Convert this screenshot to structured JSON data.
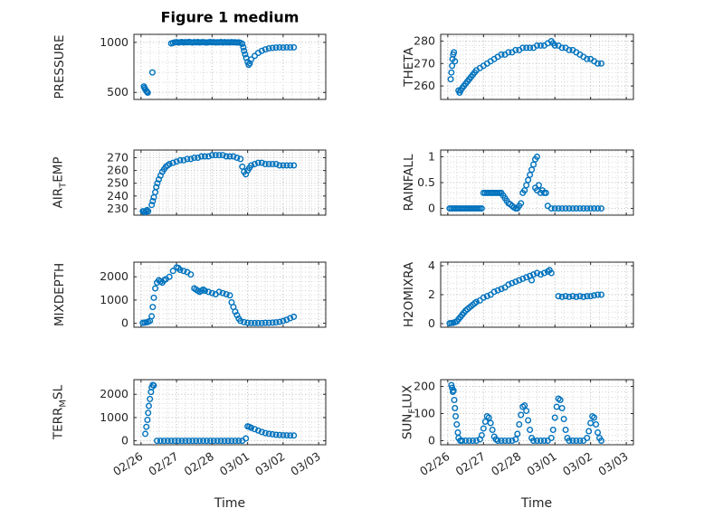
{
  "title": "Figure 1 medium",
  "xlabel": "Time",
  "marker_color": "#0072BD",
  "xlim": [
    -0.2,
    5.2
  ],
  "xticks": [
    0,
    1,
    2,
    3,
    4,
    5
  ],
  "xticklabels": [
    "02/26",
    "02/27",
    "02/28",
    "03/01",
    "03/02",
    "03/03"
  ],
  "chart_data": [
    {
      "type": "scatter",
      "name": "pressure",
      "ylabel_parts": [
        {
          "t": "PRESSURE",
          "sub": false
        }
      ],
      "ylim": [
        430,
        1080
      ],
      "yticks": [
        500,
        1000
      ],
      "x": [
        0.08,
        0.1,
        0.12,
        0.15,
        0.17,
        0.19,
        0.32,
        0.85,
        0.9,
        0.95,
        1.0,
        1.05,
        1.1,
        1.15,
        1.2,
        1.25,
        1.3,
        1.35,
        1.4,
        1.45,
        1.5,
        1.55,
        1.6,
        1.65,
        1.7,
        1.75,
        1.8,
        1.85,
        1.9,
        1.95,
        2.0,
        2.05,
        2.1,
        2.15,
        2.2,
        2.25,
        2.3,
        2.35,
        2.4,
        2.45,
        2.5,
        2.55,
        2.6,
        2.65,
        2.7,
        2.75,
        2.8,
        2.85,
        2.88,
        2.9,
        2.93,
        2.96,
        3.0,
        3.03,
        3.06,
        3.1,
        3.2,
        3.3,
        3.4,
        3.5,
        3.6,
        3.7,
        3.8,
        3.9,
        4.0,
        4.1,
        4.2,
        4.3
      ],
      "y": [
        560,
        545,
        530,
        515,
        505,
        498,
        700,
        990,
        995,
        1000,
        1002,
        998,
        1001,
        1003,
        999,
        1002,
        1000,
        1004,
        1001,
        998,
        1002,
        1000,
        1003,
        999,
        1001,
        1002,
        1000,
        998,
        1001,
        1003,
        1000,
        1002,
        999,
        1001,
        1000,
        1003,
        998,
        1002,
        1000,
        1001,
        999,
        1002,
        1000,
        1001,
        998,
        1000,
        995,
        985,
        950,
        915,
        880,
        845,
        805,
        775,
        790,
        830,
        865,
        895,
        915,
        930,
        940,
        945,
        948,
        950,
        948,
        950,
        949,
        950
      ]
    },
    {
      "type": "scatter",
      "name": "air-temp",
      "ylabel_parts": [
        {
          "t": "AIR",
          "sub": false
        },
        {
          "t": "T",
          "sub": true
        },
        {
          "t": "EMP",
          "sub": false
        }
      ],
      "ylim": [
        225,
        276
      ],
      "yticks": [
        230,
        240,
        250,
        260,
        270
      ],
      "x": [
        0.05,
        0.08,
        0.11,
        0.14,
        0.17,
        0.2,
        0.3,
        0.33,
        0.36,
        0.4,
        0.43,
        0.46,
        0.5,
        0.55,
        0.6,
        0.65,
        0.7,
        0.75,
        0.8,
        0.9,
        1.0,
        1.1,
        1.2,
        1.3,
        1.4,
        1.5,
        1.6,
        1.7,
        1.8,
        1.9,
        2.0,
        2.1,
        2.2,
        2.3,
        2.4,
        2.5,
        2.6,
        2.7,
        2.8,
        2.85,
        2.9,
        2.95,
        3.0,
        3.05,
        3.1,
        3.2,
        3.3,
        3.4,
        3.5,
        3.6,
        3.7,
        3.8,
        3.9,
        4.0,
        4.1,
        4.2,
        4.3
      ],
      "y": [
        228,
        228,
        227,
        228,
        229,
        228,
        233,
        236,
        239,
        243,
        247,
        250,
        253,
        256,
        259,
        261,
        263,
        264,
        265,
        266,
        267,
        268,
        268,
        269,
        269,
        270,
        270,
        271,
        271,
        271,
        272,
        272,
        272,
        272,
        271,
        271,
        271,
        270,
        269,
        263,
        259,
        257,
        260,
        262,
        264,
        265,
        266,
        266,
        265,
        265,
        265,
        265,
        264,
        264,
        264,
        264,
        264
      ]
    },
    {
      "type": "scatter",
      "name": "mixdepth",
      "ylabel_parts": [
        {
          "t": "MIXDEPTH",
          "sub": false
        }
      ],
      "ylim": [
        -170,
        2630
      ],
      "yticks": [
        0,
        1000,
        2000
      ],
      "x": [
        0.05,
        0.1,
        0.15,
        0.2,
        0.25,
        0.3,
        0.33,
        0.36,
        0.4,
        0.45,
        0.5,
        0.55,
        0.6,
        0.65,
        0.7,
        0.8,
        0.9,
        1.0,
        1.05,
        1.1,
        1.2,
        1.3,
        1.4,
        1.5,
        1.55,
        1.6,
        1.65,
        1.7,
        1.75,
        1.8,
        1.9,
        2.0,
        2.1,
        2.2,
        2.3,
        2.4,
        2.5,
        2.55,
        2.6,
        2.65,
        2.7,
        2.75,
        2.8,
        2.9,
        3.0,
        3.1,
        3.2,
        3.3,
        3.4,
        3.5,
        3.6,
        3.7,
        3.8,
        3.9,
        4.0,
        4.1,
        4.2,
        4.3
      ],
      "y": [
        20,
        30,
        40,
        60,
        100,
        300,
        700,
        1100,
        1500,
        1750,
        1850,
        1800,
        1750,
        1850,
        1900,
        2000,
        2250,
        2400,
        2380,
        2300,
        2250,
        2200,
        2100,
        1500,
        1450,
        1400,
        1350,
        1400,
        1450,
        1400,
        1350,
        1300,
        1250,
        1350,
        1300,
        1250,
        1200,
        900,
        700,
        500,
        350,
        200,
        100,
        50,
        20,
        10,
        10,
        10,
        10,
        20,
        20,
        30,
        40,
        60,
        100,
        150,
        220,
        280
      ]
    },
    {
      "type": "scatter",
      "name": "terr-msl",
      "ylabel_parts": [
        {
          "t": "TERR",
          "sub": false
        },
        {
          "t": "M",
          "sub": true
        },
        {
          "t": "SL",
          "sub": false
        }
      ],
      "ylim": [
        -170,
        2630
      ],
      "yticks": [
        0,
        1000,
        2000
      ],
      "x": [
        0.12,
        0.15,
        0.18,
        0.2,
        0.22,
        0.25,
        0.28,
        0.3,
        0.33,
        0.36,
        0.45,
        0.55,
        0.65,
        0.75,
        0.85,
        0.95,
        1.05,
        1.15,
        1.25,
        1.35,
        1.45,
        1.55,
        1.65,
        1.75,
        1.85,
        1.95,
        2.05,
        2.15,
        2.25,
        2.35,
        2.45,
        2.55,
        2.65,
        2.75,
        2.85,
        2.95,
        3.0,
        3.05,
        3.1,
        3.2,
        3.3,
        3.4,
        3.5,
        3.6,
        3.7,
        3.8,
        3.9,
        4.0,
        4.1,
        4.2,
        4.3
      ],
      "y": [
        300,
        600,
        900,
        1200,
        1500,
        1800,
        2100,
        2300,
        2400,
        2380,
        0,
        0,
        0,
        0,
        0,
        0,
        0,
        0,
        0,
        0,
        0,
        0,
        0,
        0,
        0,
        0,
        0,
        0,
        0,
        0,
        0,
        0,
        0,
        0,
        0,
        100,
        620,
        600,
        560,
        500,
        440,
        380,
        330,
        300,
        280,
        260,
        250,
        240,
        235,
        230,
        230
      ]
    },
    {
      "type": "scatter",
      "name": "theta",
      "ylabel_parts": [
        {
          "t": "THETA",
          "sub": false
        }
      ],
      "ylim": [
        254,
        283
      ],
      "yticks": [
        260,
        270,
        280
      ],
      "x": [
        0.08,
        0.1,
        0.12,
        0.13,
        0.15,
        0.17,
        0.2,
        0.3,
        0.33,
        0.36,
        0.4,
        0.45,
        0.5,
        0.55,
        0.6,
        0.65,
        0.7,
        0.75,
        0.8,
        0.9,
        1.0,
        1.1,
        1.2,
        1.3,
        1.4,
        1.5,
        1.6,
        1.7,
        1.8,
        1.9,
        2.0,
        2.1,
        2.2,
        2.3,
        2.4,
        2.5,
        2.6,
        2.7,
        2.8,
        2.9,
        2.95,
        3.0,
        3.1,
        3.2,
        3.3,
        3.4,
        3.5,
        3.6,
        3.7,
        3.8,
        3.9,
        4.0,
        4.1,
        4.2,
        4.3
      ],
      "y": [
        263,
        266,
        269,
        272,
        274,
        275,
        271,
        258,
        257,
        258,
        259,
        260,
        261,
        262,
        263,
        264,
        265,
        266,
        267,
        268,
        269,
        270,
        271,
        272,
        273,
        274,
        274,
        275,
        275,
        276,
        276,
        277,
        277,
        277,
        277,
        278,
        278,
        278,
        279,
        280,
        279,
        278,
        278,
        277,
        277,
        276,
        276,
        275,
        274,
        273,
        272,
        272,
        271,
        270,
        270
      ]
    },
    {
      "type": "scatter",
      "name": "rainfall",
      "ylabel_parts": [
        {
          "t": "RAINFALL",
          "sub": false
        }
      ],
      "ylim": [
        -0.13,
        1.13
      ],
      "yticks": [
        0,
        0.5,
        1
      ],
      "x": [
        0.05,
        0.1,
        0.15,
        0.2,
        0.25,
        0.3,
        0.35,
        0.4,
        0.45,
        0.5,
        0.55,
        0.6,
        0.65,
        0.7,
        0.75,
        0.8,
        0.85,
        0.9,
        0.95,
        1.0,
        1.05,
        1.1,
        1.15,
        1.2,
        1.25,
        1.3,
        1.35,
        1.4,
        1.45,
        1.5,
        1.55,
        1.6,
        1.65,
        1.7,
        1.75,
        1.8,
        1.85,
        1.9,
        1.95,
        2.0,
        2.05,
        2.1,
        2.15,
        2.2,
        2.25,
        2.3,
        2.35,
        2.4,
        2.45,
        2.45,
        2.5,
        2.5,
        2.55,
        2.6,
        2.65,
        2.7,
        2.75,
        2.8,
        2.9,
        3.0,
        3.1,
        3.2,
        3.3,
        3.4,
        3.5,
        3.6,
        3.7,
        3.8,
        3.9,
        4.0,
        4.1,
        4.2,
        4.3
      ],
      "y": [
        0,
        0,
        0,
        0,
        0,
        0,
        0,
        0,
        0,
        0,
        0,
        0,
        0,
        0,
        0,
        0,
        0,
        0,
        0,
        0.3,
        0.3,
        0.3,
        0.3,
        0.3,
        0.3,
        0.3,
        0.3,
        0.3,
        0.3,
        0.3,
        0.25,
        0.2,
        0.15,
        0.1,
        0.08,
        0.05,
        0.02,
        0,
        0,
        0.05,
        0.1,
        0.3,
        0.35,
        0.45,
        0.55,
        0.65,
        0.75,
        0.85,
        0.95,
        0.4,
        1.0,
        0.35,
        0.45,
        0.3,
        0.35,
        0.3,
        0.3,
        0.05,
        0,
        0,
        0,
        0,
        0,
        0,
        0,
        0,
        0,
        0,
        0,
        0,
        0,
        0,
        0
      ]
    },
    {
      "type": "scatter",
      "name": "h2omixra",
      "ylabel_parts": [
        {
          "t": "H2OMIXRA",
          "sub": false
        }
      ],
      "ylim": [
        -0.25,
        4.25
      ],
      "yticks": [
        0,
        2,
        4
      ],
      "x": [
        0.05,
        0.1,
        0.15,
        0.2,
        0.25,
        0.3,
        0.35,
        0.4,
        0.45,
        0.5,
        0.55,
        0.6,
        0.65,
        0.7,
        0.75,
        0.8,
        0.9,
        1.0,
        1.1,
        1.2,
        1.3,
        1.4,
        1.5,
        1.6,
        1.7,
        1.8,
        1.9,
        2.0,
        2.1,
        2.2,
        2.3,
        2.35,
        2.4,
        2.5,
        2.6,
        2.7,
        2.8,
        2.85,
        2.9,
        3.1,
        3.2,
        3.3,
        3.4,
        3.5,
        3.6,
        3.7,
        3.8,
        3.9,
        4.0,
        4.1,
        4.2,
        4.3
      ],
      "y": [
        0.02,
        0.05,
        0.05,
        0.1,
        0.15,
        0.3,
        0.45,
        0.6,
        0.75,
        0.9,
        1.0,
        1.1,
        1.2,
        1.3,
        1.4,
        1.5,
        1.6,
        1.8,
        1.9,
        2.0,
        2.2,
        2.3,
        2.4,
        2.5,
        2.7,
        2.8,
        2.9,
        3.0,
        3.1,
        3.2,
        3.3,
        3.0,
        3.4,
        3.5,
        3.4,
        3.5,
        3.6,
        3.7,
        3.5,
        1.9,
        1.85,
        1.9,
        1.85,
        1.9,
        1.85,
        1.9,
        1.85,
        1.9,
        1.9,
        1.95,
        2.0,
        2.0
      ]
    },
    {
      "type": "scatter",
      "name": "sun-flux",
      "ylabel_parts": [
        {
          "t": "SUN",
          "sub": false
        },
        {
          "t": "F",
          "sub": true
        },
        {
          "t": "LUX",
          "sub": false
        }
      ],
      "ylim": [
        -15,
        225
      ],
      "yticks": [
        0,
        100,
        200
      ],
      "x": [
        0.1,
        0.12,
        0.14,
        0.16,
        0.18,
        0.2,
        0.22,
        0.25,
        0.28,
        0.3,
        0.35,
        0.4,
        0.5,
        0.6,
        0.7,
        0.8,
        0.9,
        0.95,
        1.0,
        1.05,
        1.1,
        1.15,
        1.2,
        1.25,
        1.3,
        1.35,
        1.4,
        1.5,
        1.6,
        1.7,
        1.8,
        1.9,
        1.95,
        2.0,
        2.05,
        2.1,
        2.15,
        2.2,
        2.25,
        2.3,
        2.35,
        2.4,
        2.5,
        2.6,
        2.7,
        2.8,
        2.9,
        2.95,
        3.0,
        3.05,
        3.1,
        3.15,
        3.2,
        3.25,
        3.3,
        3.35,
        3.4,
        3.5,
        3.6,
        3.7,
        3.8,
        3.9,
        3.95,
        4.0,
        4.05,
        4.1,
        4.15,
        4.2,
        4.25,
        4.3
      ],
      "y": [
        205,
        195,
        180,
        185,
        150,
        120,
        90,
        60,
        30,
        10,
        0,
        0,
        0,
        0,
        0,
        0,
        5,
        20,
        45,
        70,
        90,
        85,
        65,
        40,
        15,
        5,
        0,
        0,
        0,
        0,
        0,
        5,
        25,
        60,
        95,
        125,
        130,
        110,
        75,
        40,
        10,
        0,
        0,
        0,
        0,
        0,
        10,
        40,
        85,
        125,
        155,
        150,
        120,
        80,
        40,
        10,
        0,
        0,
        0,
        0,
        0,
        10,
        35,
        65,
        90,
        85,
        60,
        30,
        10,
        0
      ]
    }
  ]
}
